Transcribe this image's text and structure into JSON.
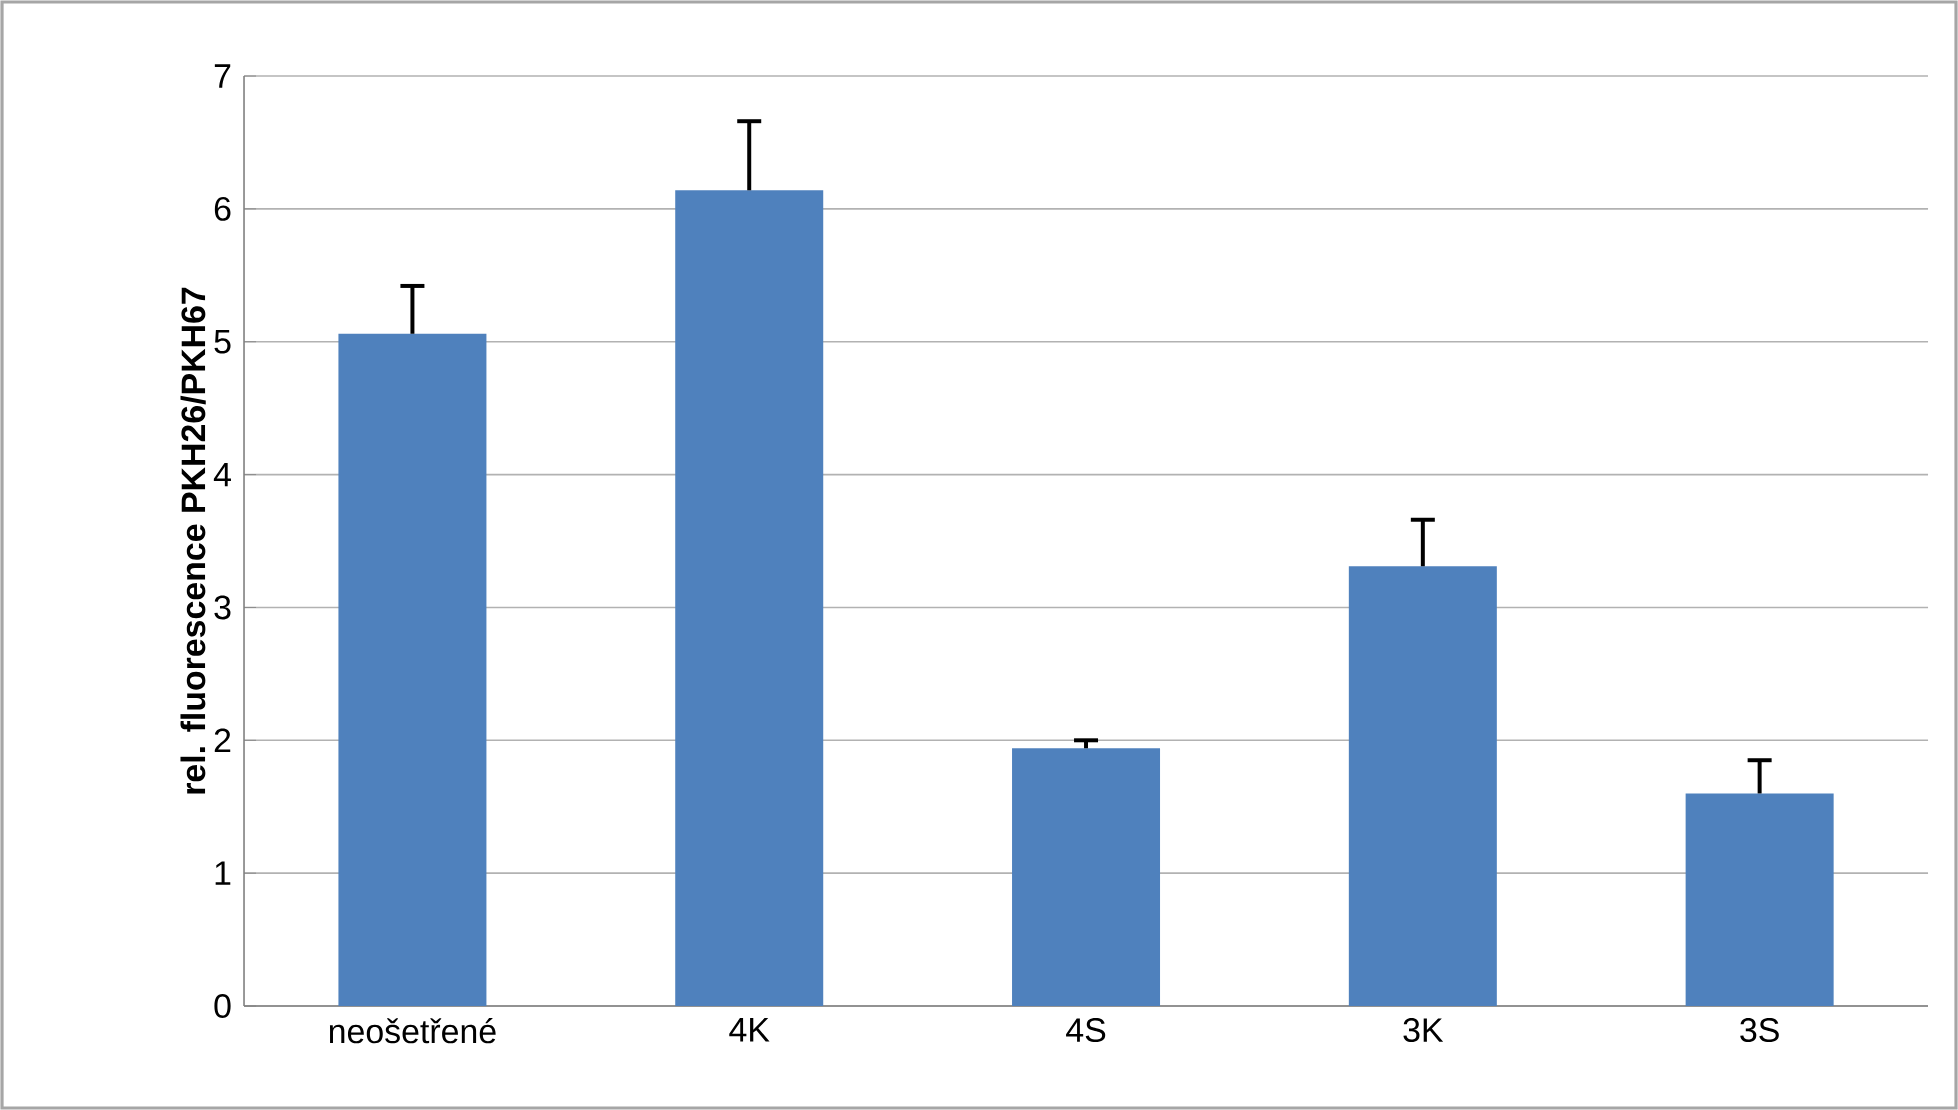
{
  "chart_data": {
    "type": "bar",
    "ylabel": "**rel. fluorescence PKH26/PKH67**",
    "categories": [
      "neošetřené",
      "4K",
      "4S",
      "3K",
      "3S"
    ],
    "values": [
      5.06,
      6.14,
      1.94,
      3.31,
      1.6
    ],
    "errors": [
      0.36,
      0.52,
      0.06,
      0.35,
      0.25
    ],
    "color": "#4f81bd",
    "ylim": [
      0,
      7
    ],
    "yticks": [
      0,
      1,
      2,
      3,
      4,
      5,
      6,
      7
    ],
    "grid": "y"
  }
}
